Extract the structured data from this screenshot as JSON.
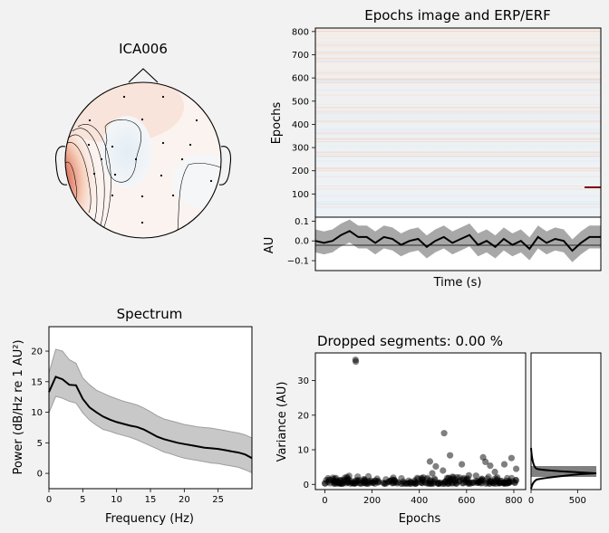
{
  "topomap": {
    "title": "ICA006",
    "sensor_count": 20
  },
  "epochs_image": {
    "title": "Epochs image and ERP/ERF",
    "ylabel": "Epochs",
    "yticks": [
      "800",
      "700",
      "600",
      "500",
      "400",
      "300",
      "200",
      "100"
    ],
    "ylim": [
      0,
      815
    ]
  },
  "erp": {
    "ylabel": "AU",
    "xlabel": "Time (s)",
    "yticks": [
      "0.1",
      "0.0",
      "−0.1"
    ],
    "ylim": [
      -0.15,
      0.12
    ]
  },
  "spectrum": {
    "title": "Spectrum",
    "ylabel": "Power (dB/Hz re 1 AU²)",
    "xlabel": "Frequency (Hz)",
    "xticks": [
      "0",
      "5",
      "10",
      "15",
      "20",
      "25"
    ],
    "yticks": [
      "20",
      "15",
      "10",
      "5",
      "0"
    ]
  },
  "variance": {
    "title": "Dropped segments: 0.00 %",
    "ylabel": "Variance (AU)",
    "xlabel": "Epochs",
    "xticks": [
      "0",
      "200",
      "400",
      "600",
      "800"
    ],
    "yticks": [
      "30",
      "20",
      "10",
      "0"
    ]
  },
  "histogram": {
    "xticks": [
      "0",
      "500"
    ]
  },
  "colors": {
    "line": "#000000",
    "band": "#a8a8a8",
    "spectrum_band": "#c8c8c8",
    "hot": "#8b0a1e",
    "cold": "#d6e6f2"
  },
  "chart_data": [
    {
      "type": "heatmap",
      "title": "Epochs image and ERP/ERF",
      "ylabel": "Epochs",
      "ylim": [
        0,
        815
      ],
      "note_rows": "mostly near-zero values across ~815 epochs; a short strong red streak near epoch 125 at late times"
    },
    {
      "type": "area",
      "ylabel": "AU",
      "xlabel": "Time (s)",
      "ylim": [
        -0.15,
        0.12
      ],
      "series": [
        {
          "x": [
            0,
            0.03,
            0.06,
            0.09,
            0.12,
            0.15,
            0.18,
            0.21,
            0.24,
            0.27,
            0.3,
            0.33,
            0.36,
            0.39,
            0.42,
            0.45,
            0.48,
            0.51,
            0.54,
            0.57,
            0.6,
            0.63,
            0.66,
            0.69,
            0.72,
            0.75,
            0.78,
            0.81,
            0.84,
            0.87,
            0.9,
            0.93,
            0.96,
            1.0
          ],
          "values": [
            0.0,
            -0.01,
            0.0,
            0.03,
            0.05,
            0.02,
            0.02,
            -0.01,
            0.02,
            0.01,
            -0.02,
            0.0,
            0.01,
            -0.03,
            0.0,
            0.02,
            -0.01,
            0.01,
            0.03,
            -0.02,
            0.0,
            -0.03,
            0.01,
            -0.02,
            0.0,
            -0.04,
            0.02,
            -0.01,
            0.01,
            0.0,
            -0.05,
            -0.01,
            0.02,
            0.02
          ]
        }
      ]
    },
    {
      "type": "line",
      "title": "Spectrum",
      "xlabel": "Frequency (Hz)",
      "ylabel": "Power (dB/Hz re 1 AU²)",
      "xlim": [
        0,
        30
      ],
      "ylim": [
        -2.5,
        24
      ],
      "series": [
        {
          "x": [
            0,
            1,
            2,
            3,
            4,
            5,
            6,
            7,
            8,
            9,
            10,
            11,
            12,
            13,
            14,
            15,
            16,
            17,
            18,
            19,
            20,
            21,
            22,
            23,
            24,
            25,
            26,
            27,
            28,
            29,
            30
          ],
          "values": [
            13.3,
            15.8,
            15.4,
            14.5,
            14.4,
            12.2,
            10.8,
            10.0,
            9.3,
            8.8,
            8.4,
            8.1,
            7.8,
            7.6,
            7.2,
            6.6,
            6.0,
            5.6,
            5.3,
            5.0,
            4.8,
            4.6,
            4.4,
            4.2,
            4.1,
            4.0,
            3.8,
            3.6,
            3.4,
            3.1,
            2.5
          ],
          "lower": [
            9.9,
            12.6,
            12.3,
            11.8,
            11.5,
            9.9,
            8.7,
            7.9,
            7.2,
            6.9,
            6.5,
            6.2,
            5.9,
            5.5,
            5.0,
            4.5,
            4.0,
            3.5,
            3.2,
            2.8,
            2.5,
            2.3,
            2.1,
            1.9,
            1.7,
            1.6,
            1.4,
            1.2,
            1.0,
            0.6,
            0.1
          ],
          "upper": [
            16.4,
            20.3,
            20.0,
            18.6,
            18.0,
            15.6,
            14.5,
            13.6,
            13.1,
            12.6,
            12.2,
            11.8,
            11.5,
            11.2,
            10.7,
            10.1,
            9.4,
            8.9,
            8.6,
            8.3,
            8.0,
            7.8,
            7.6,
            7.5,
            7.4,
            7.2,
            7.0,
            6.8,
            6.6,
            6.3,
            5.8
          ]
        }
      ]
    },
    {
      "type": "scatter",
      "title": "Dropped segments: 0.00 %",
      "xlabel": "Epochs",
      "ylabel": "Variance (AU)",
      "xlim": [
        -40,
        850
      ],
      "ylim": [
        -1.5,
        38
      ],
      "series": [
        {
          "x": [
            130,
            131,
            505,
            530,
            445,
            470,
            580,
            670,
            680,
            700,
            720,
            760,
            790,
            810,
            640,
            560,
            500,
            730,
            455,
            610
          ],
          "values": [
            36,
            35.5,
            14.8,
            8.4,
            6.6,
            5.2,
            5.8,
            7.8,
            6.5,
            5.4,
            3.6,
            5.8,
            7.6,
            4.5,
            2.5,
            2.0,
            4.0,
            2.0,
            3.2,
            2.6
          ]
        }
      ],
      "note": "dense band of ~800 points near 0–2 AU across all epochs"
    },
    {
      "type": "bar",
      "xlim": [
        0,
        750
      ],
      "note": "horizontal histogram of variance, peak count ~650 near variance 2"
    }
  ]
}
